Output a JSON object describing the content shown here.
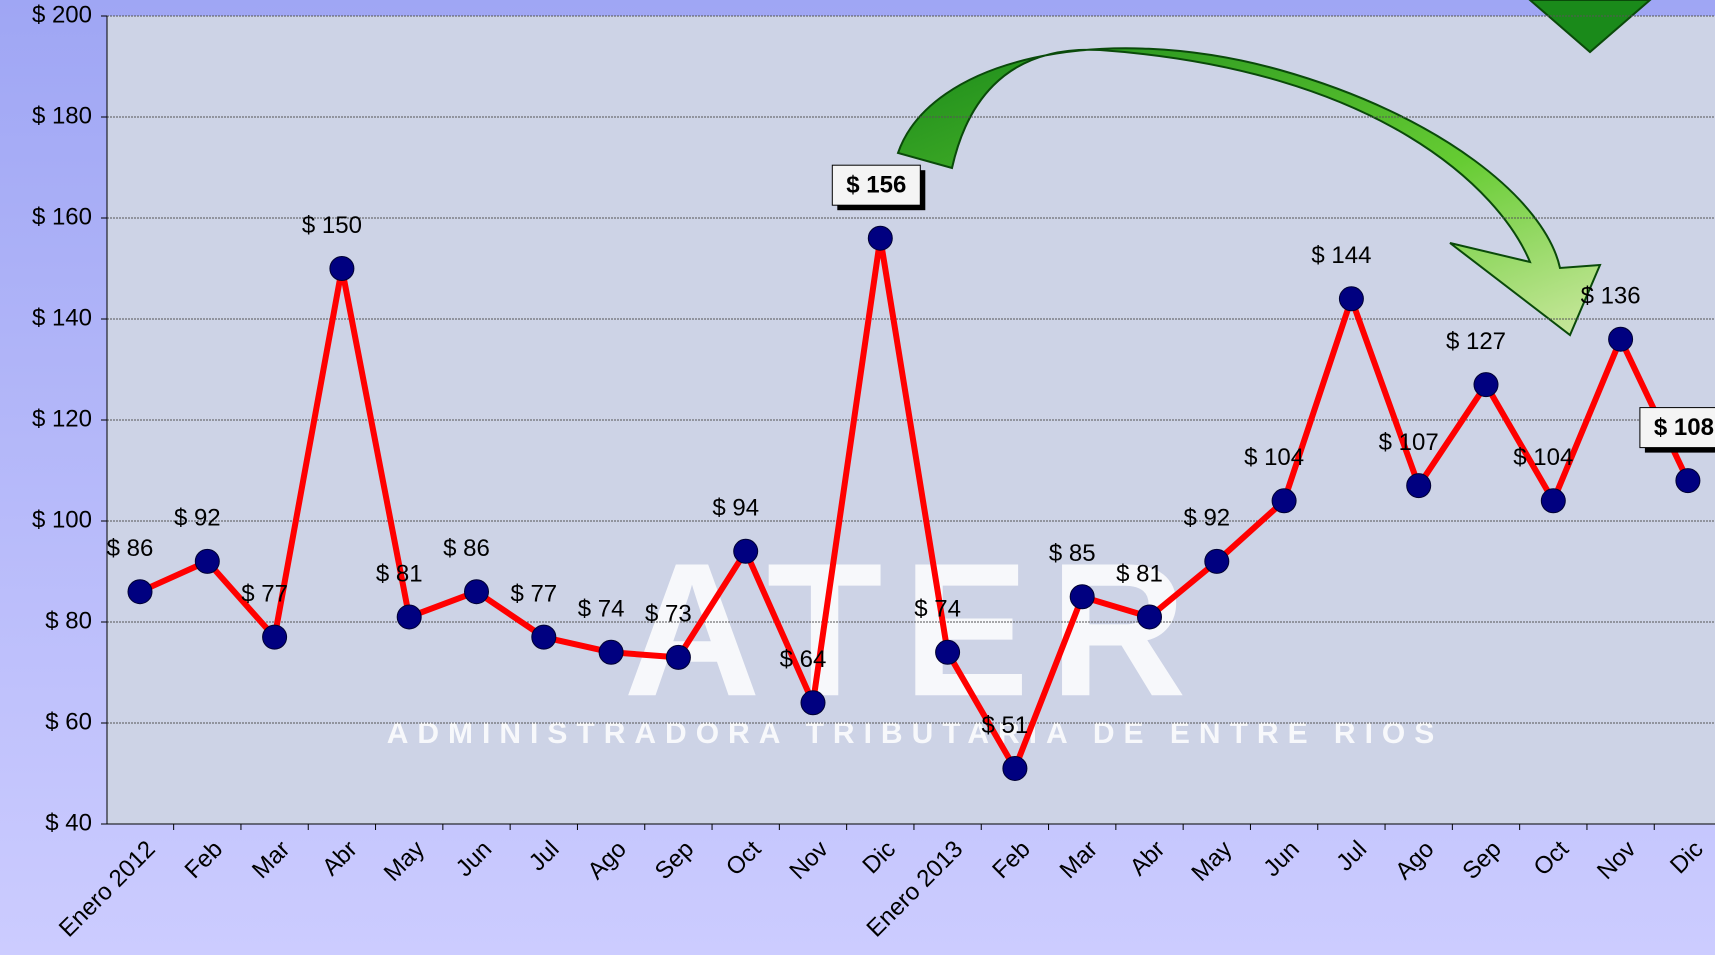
{
  "chart_data": {
    "type": "line",
    "categories": [
      "Enero 2012",
      "Feb",
      "Mar",
      "Abr",
      "May",
      "Jun",
      "Jul",
      "Ago",
      "Sep",
      "Oct",
      "Nov",
      "Dic",
      "Enero 2013",
      "Feb",
      "Mar",
      "Abr",
      "May",
      "Jun",
      "Jul",
      "Ago",
      "Sep",
      "Oct",
      "Nov",
      "Dic"
    ],
    "series": [
      {
        "color": "#ff0000",
        "marker_color": "#000080",
        "values": [
          86,
          92,
          77,
          150,
          81,
          86,
          77,
          74,
          73,
          94,
          64,
          156,
          74,
          51,
          85,
          81,
          92,
          104,
          144,
          107,
          127,
          104,
          136,
          108
        ],
        "value_labels": [
          "$ 86",
          "$ 92",
          "$ 77",
          "$ 150",
          "$ 81",
          "$ 86",
          "$ 77",
          "$ 74",
          "$ 73",
          "$ 94",
          "$ 64",
          "$ 156",
          "$ 74",
          "$ 51",
          "$ 85",
          "$ 81",
          "$ 92",
          "$ 104",
          "$ 144",
          "$ 107",
          "$ 127",
          "$ 104",
          "$ 136",
          "$ 108"
        ]
      }
    ],
    "highlighted": [
      11,
      23
    ],
    "ylim": [
      40,
      200
    ],
    "yticks": [
      {
        "value": 40,
        "label": "$ 40"
      },
      {
        "value": 60,
        "label": "$ 60"
      },
      {
        "value": 80,
        "label": "$ 80"
      },
      {
        "value": 100,
        "label": "$ 100"
      },
      {
        "value": 120,
        "label": "$ 120"
      },
      {
        "value": 140,
        "label": "$ 140"
      },
      {
        "value": 160,
        "label": "$ 160"
      },
      {
        "value": 180,
        "label": "$ 180"
      },
      {
        "value": 200,
        "label": "$ 200"
      }
    ],
    "grid": true,
    "watermark": {
      "title": "ATER",
      "subtitle": "ADMINISTRADORA TRIBUTARIA DE ENTRE RIOS"
    }
  }
}
